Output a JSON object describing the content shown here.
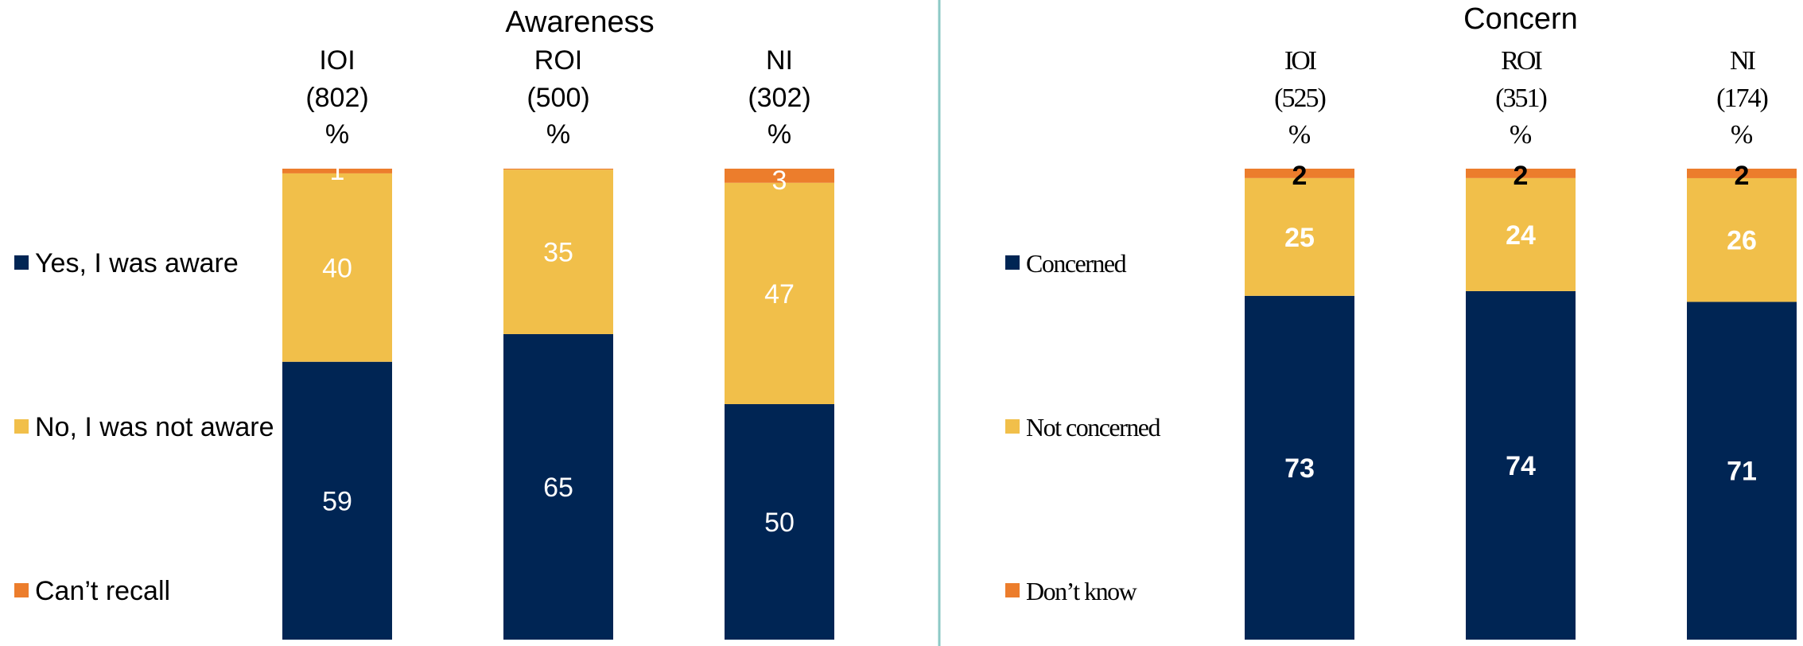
{
  "colors": {
    "navy": "#002554",
    "yellow": "#F1BF4A",
    "orange": "#EC7D2C",
    "divider": "#8CC9C6"
  },
  "chart_data": [
    {
      "type": "bar",
      "stacked": true,
      "title": "Awareness",
      "categories": [
        {
          "name": "IOI",
          "base": "(802)",
          "unit": "%"
        },
        {
          "name": "ROI",
          "base": "(500)",
          "unit": "%"
        },
        {
          "name": "NI",
          "base": "(302)",
          "unit": "%"
        }
      ],
      "series": [
        {
          "name": "Yes, I was aware",
          "color": "#002554",
          "values": [
            59,
            65,
            50
          ],
          "labels": [
            "59",
            "65",
            "50"
          ]
        },
        {
          "name": "No, I was not aware",
          "color": "#F1BF4A",
          "values": [
            40,
            35,
            47
          ],
          "labels": [
            "40",
            "35",
            "47"
          ]
        },
        {
          "name": "Can’t recall",
          "color": "#EC7D2C",
          "values": [
            1,
            0.2,
            3
          ],
          "labels": [
            "1",
            "*",
            "3"
          ]
        }
      ],
      "legend_position": "left",
      "ylim": [
        0,
        100
      ],
      "grid": false
    },
    {
      "type": "bar",
      "stacked": true,
      "title": "Concern",
      "categories": [
        {
          "name": "IOI",
          "base": "(525)",
          "unit": "%"
        },
        {
          "name": "ROI",
          "base": "(351)",
          "unit": "%"
        },
        {
          "name": "NI",
          "base": "(174)",
          "unit": "%"
        }
      ],
      "series": [
        {
          "name": "Concerned",
          "color": "#002554",
          "values": [
            73,
            74,
            71
          ],
          "labels": [
            "73",
            "74",
            "71"
          ]
        },
        {
          "name": "Not concerned",
          "color": "#F1BF4A",
          "values": [
            25,
            24,
            26
          ],
          "labels": [
            "25",
            "24",
            "26"
          ]
        },
        {
          "name": "Don’t know",
          "color": "#EC7D2C",
          "values": [
            2,
            2,
            2
          ],
          "labels": [
            "2",
            "2",
            "2"
          ]
        }
      ],
      "legend_position": "left",
      "ylim": [
        0,
        100
      ],
      "grid": false
    }
  ]
}
